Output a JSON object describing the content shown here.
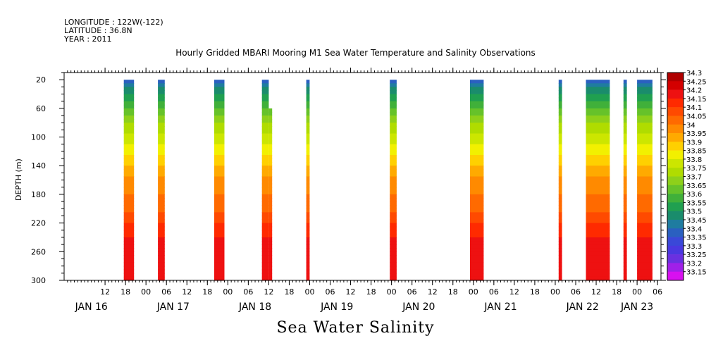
{
  "header": {
    "longitude": "LONGITUDE : 122W(-122)",
    "latitude": "LATITUDE : 36.8N",
    "year": "YEAR : 2011",
    "title": "Hourly Gridded MBARI Mooring M1 Sea Water Temperature and Salinity Observations"
  },
  "chart_data": {
    "type": "heatmap",
    "title": "Hourly Gridded MBARI Mooring M1 Sea Water Temperature and Salinity Observations",
    "xlabel": "Sea Water Salinity",
    "ylabel": "DEPTH (m)",
    "x_hour_range": [
      0,
      175
    ],
    "y_range": [
      300,
      10
    ],
    "y_ticks": [
      20,
      60,
      100,
      140,
      180,
      220,
      260,
      300
    ],
    "x_hour_ticks": [
      {
        "h": 12,
        "label": "12"
      },
      {
        "h": 18,
        "label": "18"
      },
      {
        "h": 24,
        "label": "00"
      },
      {
        "h": 30,
        "label": "06"
      },
      {
        "h": 36,
        "label": "12"
      },
      {
        "h": 42,
        "label": "18"
      },
      {
        "h": 48,
        "label": "00"
      },
      {
        "h": 54,
        "label": "06"
      },
      {
        "h": 60,
        "label": "12"
      },
      {
        "h": 66,
        "label": "18"
      },
      {
        "h": 72,
        "label": "00"
      },
      {
        "h": 78,
        "label": "06"
      },
      {
        "h": 84,
        "label": "12"
      },
      {
        "h": 90,
        "label": "18"
      },
      {
        "h": 96,
        "label": "00"
      },
      {
        "h": 102,
        "label": "06"
      },
      {
        "h": 108,
        "label": "12"
      },
      {
        "h": 114,
        "label": "18"
      },
      {
        "h": 120,
        "label": "00"
      },
      {
        "h": 126,
        "label": "06"
      },
      {
        "h": 132,
        "label": "12"
      },
      {
        "h": 138,
        "label": "18"
      },
      {
        "h": 144,
        "label": "00"
      },
      {
        "h": 150,
        "label": "06"
      },
      {
        "h": 156,
        "label": "12"
      },
      {
        "h": 162,
        "label": "18"
      },
      {
        "h": 168,
        "label": "00"
      },
      {
        "h": 174,
        "label": "06"
      }
    ],
    "day_labels": [
      {
        "h": 8,
        "label": "JAN 16"
      },
      {
        "h": 32,
        "label": "JAN 17"
      },
      {
        "h": 56,
        "label": "JAN 18"
      },
      {
        "h": 80,
        "label": "JAN 19"
      },
      {
        "h": 104,
        "label": "JAN 20"
      },
      {
        "h": 128,
        "label": "JAN 21"
      },
      {
        "h": 152,
        "label": "JAN 22"
      },
      {
        "h": 168,
        "label": "JAN 23"
      }
    ],
    "segments": [
      {
        "start": 17.5,
        "end": 20.5,
        "top": 20
      },
      {
        "start": 27.5,
        "end": 29.5,
        "top": 20
      },
      {
        "start": 44,
        "end": 47,
        "top": 20
      },
      {
        "start": 58,
        "end": 60,
        "top": 20
      },
      {
        "start": 60,
        "end": 61,
        "top": 60
      },
      {
        "start": 71,
        "end": 72,
        "top": 20
      },
      {
        "start": 95.5,
        "end": 97.5,
        "top": 20
      },
      {
        "start": 119,
        "end": 123,
        "top": 20
      },
      {
        "start": 145,
        "end": 146,
        "top": 20
      },
      {
        "start": 153,
        "end": 160,
        "top": 20
      },
      {
        "start": 164,
        "end": 165,
        "top": 20
      },
      {
        "start": 168,
        "end": 172.5,
        "top": 20
      }
    ],
    "depth_profile": [
      {
        "depth": 20,
        "value": 33.42
      },
      {
        "depth": 40,
        "value": 33.55
      },
      {
        "depth": 60,
        "value": 33.65
      },
      {
        "depth": 80,
        "value": 33.75
      },
      {
        "depth": 100,
        "value": 33.82
      },
      {
        "depth": 120,
        "value": 33.88
      },
      {
        "depth": 140,
        "value": 33.95
      },
      {
        "depth": 160,
        "value": 34.02
      },
      {
        "depth": 180,
        "value": 34.05
      },
      {
        "depth": 200,
        "value": 34.08
      },
      {
        "depth": 220,
        "value": 34.15
      },
      {
        "depth": 240,
        "value": 34.2
      },
      {
        "depth": 260,
        "value": 34.25
      },
      {
        "depth": 280,
        "value": 34.22
      },
      {
        "depth": 300,
        "value": 34.2
      }
    ],
    "colorbar": {
      "levels": [
        "34.3",
        "34.25",
        "34.2",
        "34.15",
        "34.1",
        "34.05",
        "34",
        "33.95",
        "33.9",
        "33.85",
        "33.8",
        "33.75",
        "33.7",
        "33.65",
        "33.6",
        "33.55",
        "33.5",
        "33.45",
        "33.4",
        "33.35",
        "33.3",
        "33.25",
        "33.2",
        "33.15"
      ],
      "colors": [
        "#b00000",
        "#d40000",
        "#ee1111",
        "#ff2a00",
        "#ff4a00",
        "#ff6a00",
        "#ff8a00",
        "#ffaa00",
        "#ffd000",
        "#f2f000",
        "#cce600",
        "#b0dc00",
        "#8ed01a",
        "#66c22a",
        "#40b03a",
        "#20a050",
        "#1a8c6c",
        "#1f7ca0",
        "#2a60c0",
        "#3a48d8",
        "#4a38e0",
        "#6a30e0",
        "#a020e8",
        "#d810f0"
      ]
    }
  }
}
